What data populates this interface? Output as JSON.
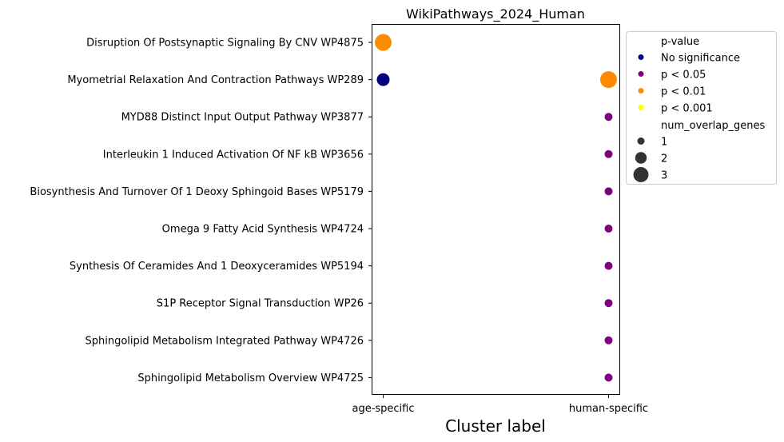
{
  "chart_data": {
    "type": "scatter",
    "title": "WikiPathways_2024_Human",
    "xlabel": "Cluster label",
    "ylabel": "",
    "x_categories": [
      "age-specific",
      "human-specific"
    ],
    "y_categories": [
      "Disruption Of Postsynaptic Signaling By CNV WP4875",
      "Myometrial Relaxation And Contraction Pathways WP289",
      "MYD88 Distinct Input Output Pathway WP3877",
      "Interleukin 1 Induced Activation Of NF kB WP3656",
      "Biosynthesis And Turnover Of 1 Deoxy Sphingoid Bases WP5179",
      "Omega 9 Fatty Acid Synthesis WP4724",
      "Synthesis Of Ceramides And 1 Deoxyceramides WP5194",
      "S1P Receptor Signal Transduction WP26",
      "Sphingolipid Metabolism Integrated Pathway WP4726",
      "Sphingolipid Metabolism Overview WP4725"
    ],
    "points": [
      {
        "x": "age-specific",
        "y": "Disruption Of Postsynaptic Signaling By CNV WP4875",
        "p_value": "p < 0.01",
        "num_overlap_genes": 3
      },
      {
        "x": "age-specific",
        "y": "Myometrial Relaxation And Contraction Pathways WP289",
        "p_value": "No significance",
        "num_overlap_genes": 2
      },
      {
        "x": "human-specific",
        "y": "Myometrial Relaxation And Contraction Pathways WP289",
        "p_value": "p < 0.01",
        "num_overlap_genes": 3
      },
      {
        "x": "human-specific",
        "y": "MYD88 Distinct Input Output Pathway WP3877",
        "p_value": "p < 0.05",
        "num_overlap_genes": 1
      },
      {
        "x": "human-specific",
        "y": "Interleukin 1 Induced Activation Of NF kB WP3656",
        "p_value": "p < 0.05",
        "num_overlap_genes": 1
      },
      {
        "x": "human-specific",
        "y": "Biosynthesis And Turnover Of 1 Deoxy Sphingoid Bases WP5179",
        "p_value": "p < 0.05",
        "num_overlap_genes": 1
      },
      {
        "x": "human-specific",
        "y": "Omega 9 Fatty Acid Synthesis WP4724",
        "p_value": "p < 0.05",
        "num_overlap_genes": 1
      },
      {
        "x": "human-specific",
        "y": "Synthesis Of Ceramides And 1 Deoxyceramides WP5194",
        "p_value": "p < 0.05",
        "num_overlap_genes": 1
      },
      {
        "x": "human-specific",
        "y": "S1P Receptor Signal Transduction WP26",
        "p_value": "p < 0.05",
        "num_overlap_genes": 1
      },
      {
        "x": "human-specific",
        "y": "Sphingolipid Metabolism Integrated Pathway WP4726",
        "p_value": "p < 0.05",
        "num_overlap_genes": 1
      },
      {
        "x": "human-specific",
        "y": "Sphingolipid Metabolism Overview WP4725",
        "p_value": "p < 0.05",
        "num_overlap_genes": 1
      }
    ],
    "legend": {
      "placement": "outside-right",
      "color_title": "p-value",
      "color_entries": [
        {
          "label": "No significance",
          "color": "#00007f"
        },
        {
          "label": "p < 0.05",
          "color": "#800080"
        },
        {
          "label": "p < 0.01",
          "color": "#ff8c00"
        },
        {
          "label": "p < 0.001",
          "color": "#ffff00"
        }
      ],
      "size_title": "num_overlap_genes",
      "size_entries": [
        {
          "label": "1",
          "value": 1
        },
        {
          "label": "2",
          "value": 2
        },
        {
          "label": "3",
          "value": 3
        }
      ]
    },
    "grid": false
  }
}
